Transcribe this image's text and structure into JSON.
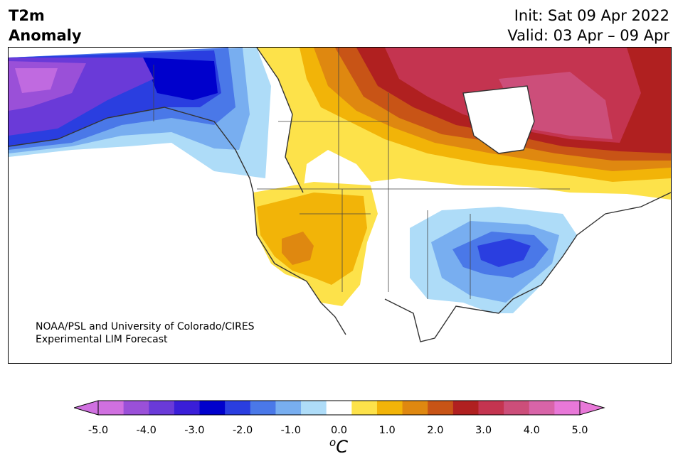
{
  "header": {
    "title_line1": "T2m",
    "title_line2": "Anomaly",
    "init": "Init: Sat 09 Apr 2022",
    "valid": "Valid: 03 Apr – 09 Apr"
  },
  "credit": {
    "line1": "NOAA/PSL and University of Colorado/CIRES",
    "line2": "Experimental LIM Forecast"
  },
  "colorbar": {
    "ticks": [
      "-5.0",
      "-4.0",
      "-3.0",
      "-2.0",
      "-1.0",
      "0.0",
      "1.0",
      "2.0",
      "3.0",
      "4.0",
      "5.0"
    ],
    "unit": "C",
    "unit_prefix": "o",
    "colors": [
      "#d070e0",
      "#9a50d8",
      "#6a3ad8",
      "#3a1ed8",
      "#0000cc",
      "#2a3ee0",
      "#4a78e8",
      "#78aef0",
      "#aedcf8",
      "#ffffff",
      "#fde24a",
      "#f2b408",
      "#df8810",
      "#c85416",
      "#b02020",
      "#c43450",
      "#cc4e7a",
      "#d864a8",
      "#e878d8"
    ],
    "under_color": "#d070e0",
    "over_color": "#e878d8"
  },
  "map": {
    "region": "North America",
    "anomaly_regions": [
      {
        "name": "Alaska",
        "value": -3.5
      },
      {
        "name": "Southwest US",
        "value": 1.5
      },
      {
        "name": "Ohio Valley",
        "value": -2.0
      },
      {
        "name": "Hudson Bay",
        "value": 4.0
      }
    ]
  }
}
